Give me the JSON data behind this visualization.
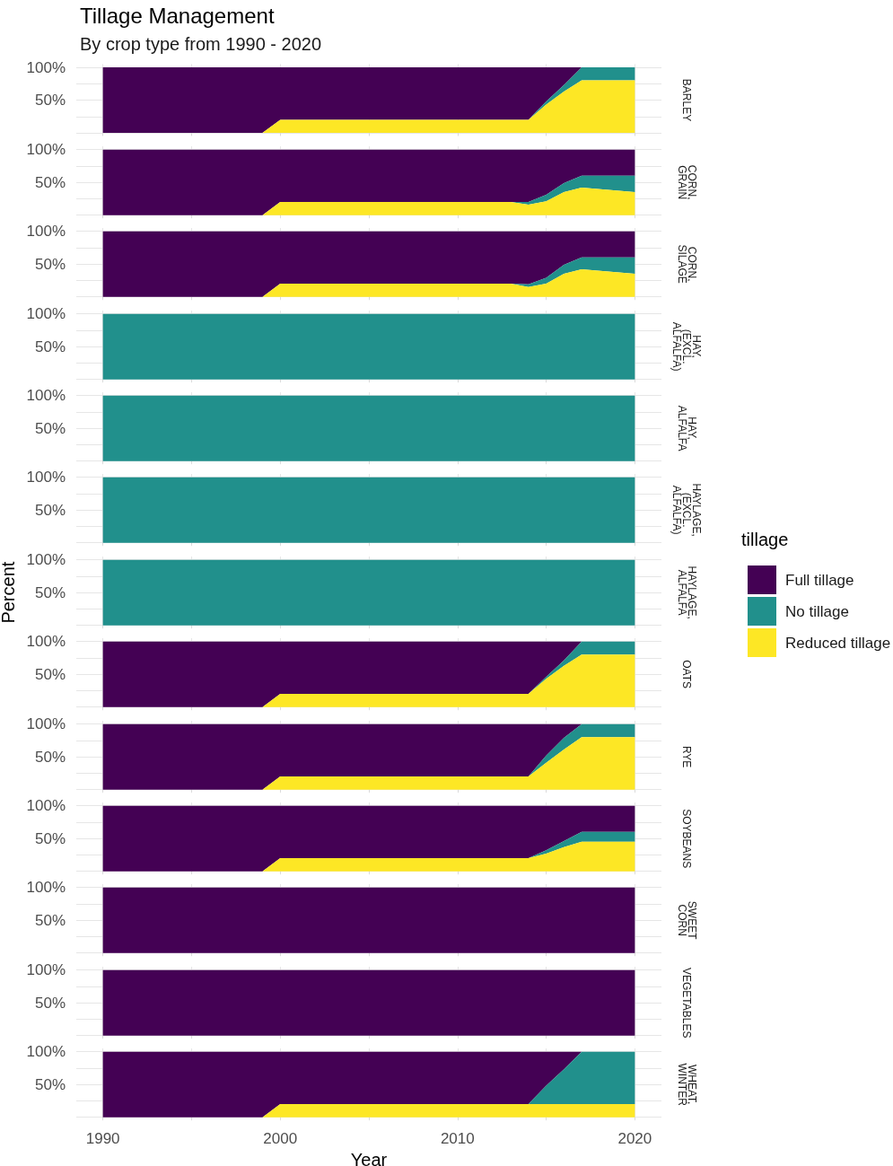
{
  "chart_data": [
    {
      "type": "area",
      "stacked": true,
      "title": "Tillage Management",
      "subtitle": "By crop type from 1990 - 2020",
      "annotations": [
        "BARLEY"
      ],
      "x": [
        1990,
        1999,
        2000,
        2013,
        2014,
        2015,
        2016,
        2017,
        2020
      ],
      "series": [
        {
          "color": "#fde725",
          "values": [
            0,
            0,
            20,
            20,
            20,
            43,
            63,
            80,
            80
          ]
        },
        {
          "color": "#21908c",
          "values": [
            0,
            0,
            0,
            0,
            0,
            5,
            10,
            20,
            20
          ]
        },
        {
          "color": "#440154",
          "values": [
            100,
            100,
            80,
            80,
            80,
            52,
            27,
            0,
            null
          ]
        }
      ],
      "xlim": [
        1988.5,
        2021.5
      ],
      "xticks": [
        1990,
        {
          "value": 1995,
          "label": null
        },
        2000,
        {
          "value": 2005,
          "label": null
        },
        2010,
        {
          "value": 2015,
          "label": null
        },
        2020
      ],
      "ylim": [
        -5,
        105
      ],
      "yticks": [
        {
          "value": 0,
          "label": null
        },
        {
          "value": 25,
          "label": null
        },
        {
          "value": 50,
          "label": "50%"
        },
        {
          "value": 75,
          "label": null
        },
        {
          "value": 100,
          "label": "100%"
        }
      ],
      "grid": true,
      "tick_labels": "y"
    },
    {
      "type": "area",
      "stacked": true,
      "annotations": [
        "CORN, GRAIN"
      ],
      "x": [
        1990,
        1999,
        2000,
        2013,
        2014,
        2015,
        2016,
        2017,
        2020
      ],
      "series": [
        {
          "color": "#fde725",
          "values": [
            0,
            0,
            20,
            20,
            16,
            21,
            35,
            42,
            35
          ]
        },
        {
          "color": "#21908c",
          "values": [
            0,
            0,
            0,
            0,
            4,
            10,
            14,
            18,
            25
          ]
        },
        {
          "color": "#440154",
          "values": [
            100,
            100,
            80,
            80,
            80,
            69,
            51,
            40,
            40
          ]
        }
      ],
      "xlim": [
        1988.5,
        2021.5
      ],
      "xticks": [
        1990,
        {
          "value": 1995,
          "label": null
        },
        2000,
        {
          "value": 2005,
          "label": null
        },
        2010,
        {
          "value": 2015,
          "label": null
        },
        2020
      ],
      "ylim": [
        -5,
        105
      ],
      "yticks": [
        {
          "value": 0,
          "label": null
        },
        {
          "value": 25,
          "label": null
        },
        {
          "value": 50,
          "label": "50%"
        },
        {
          "value": 75,
          "label": null
        },
        {
          "value": 100,
          "label": "100%"
        }
      ],
      "grid": true,
      "tick_labels": "y"
    },
    {
      "type": "area",
      "stacked": true,
      "annotations": [
        "CORN, SILAGE"
      ],
      "x": [
        1990,
        1999,
        2000,
        2013,
        2014,
        2015,
        2016,
        2017,
        2020
      ],
      "series": [
        {
          "color": "#fde725",
          "values": [
            0,
            0,
            20,
            20,
            15,
            20,
            35,
            42,
            35
          ]
        },
        {
          "color": "#21908c",
          "values": [
            0,
            0,
            0,
            0,
            4,
            9,
            14,
            18,
            25
          ]
        },
        {
          "color": "#440154",
          "values": [
            100,
            100,
            80,
            80,
            81,
            71,
            51,
            40,
            40
          ]
        }
      ],
      "xlim": [
        1988.5,
        2021.5
      ],
      "xticks": [
        1990,
        {
          "value": 1995,
          "label": null
        },
        2000,
        {
          "value": 2005,
          "label": null
        },
        2010,
        {
          "value": 2015,
          "label": null
        },
        2020
      ],
      "ylim": [
        -5,
        105
      ],
      "yticks": [
        {
          "value": 0,
          "label": null
        },
        {
          "value": 25,
          "label": null
        },
        {
          "value": 50,
          "label": "50%"
        },
        {
          "value": 75,
          "label": null
        },
        {
          "value": 100,
          "label": "100%"
        }
      ],
      "grid": true,
      "tick_labels": "y"
    },
    {
      "type": "area",
      "stacked": true,
      "annotations": [
        "HAY, (EXCL. ALFALFA)"
      ],
      "x": [
        1990,
        2020
      ],
      "series": [
        {
          "color": "#21908c",
          "values": [
            100,
            100
          ]
        }
      ],
      "xlim": [
        1988.5,
        2021.5
      ],
      "xticks": [
        1990,
        {
          "value": 1995,
          "label": null
        },
        2000,
        {
          "value": 2005,
          "label": null
        },
        2010,
        {
          "value": 2015,
          "label": null
        },
        2020
      ],
      "ylim": [
        -5,
        105
      ],
      "yticks": [
        {
          "value": 0,
          "label": null
        },
        {
          "value": 25,
          "label": null
        },
        {
          "value": 50,
          "label": "50%"
        },
        {
          "value": 75,
          "label": null
        },
        {
          "value": 100,
          "label": "100%"
        }
      ],
      "grid": true,
      "tick_labels": "y"
    },
    {
      "type": "area",
      "stacked": true,
      "annotations": [
        "HAY, ALFALFA"
      ],
      "x": [
        1990,
        2020
      ],
      "series": [
        {
          "color": "#21908c",
          "values": [
            100,
            100
          ]
        }
      ],
      "xlim": [
        1988.5,
        2021.5
      ],
      "xticks": [
        1990,
        {
          "value": 1995,
          "label": null
        },
        2000,
        {
          "value": 2005,
          "label": null
        },
        2010,
        {
          "value": 2015,
          "label": null
        },
        2020
      ],
      "ylim": [
        -5,
        105
      ],
      "yticks": [
        {
          "value": 0,
          "label": null
        },
        {
          "value": 25,
          "label": null
        },
        {
          "value": 50,
          "label": "50%"
        },
        {
          "value": 75,
          "label": null
        },
        {
          "value": 100,
          "label": "100%"
        }
      ],
      "grid": true,
      "tick_labels": "y"
    },
    {
      "type": "area",
      "stacked": true,
      "annotations": [
        "HAYLAGE, (EXCL. ALFALFA)"
      ],
      "x": [
        1990,
        2020
      ],
      "series": [
        {
          "color": "#21908c",
          "values": [
            100,
            100
          ]
        }
      ],
      "xlim": [
        1988.5,
        2021.5
      ],
      "xticks": [
        1990,
        {
          "value": 1995,
          "label": null
        },
        2000,
        {
          "value": 2005,
          "label": null
        },
        2010,
        {
          "value": 2015,
          "label": null
        },
        2020
      ],
      "ylim": [
        -5,
        105
      ],
      "yticks": [
        {
          "value": 0,
          "label": null
        },
        {
          "value": 25,
          "label": null
        },
        {
          "value": 50,
          "label": "50%"
        },
        {
          "value": 75,
          "label": null
        },
        {
          "value": 100,
          "label": "100%"
        }
      ],
      "grid": true,
      "tick_labels": "y"
    },
    {
      "type": "area",
      "stacked": true,
      "ylabel": "Percent",
      "annotations": [
        "HAYLAGE, ALFALFA"
      ],
      "x": [
        1990,
        2020
      ],
      "series": [
        {
          "color": "#21908c",
          "values": [
            100,
            100
          ]
        }
      ],
      "xlim": [
        1988.5,
        2021.5
      ],
      "xticks": [
        1990,
        {
          "value": 1995,
          "label": null
        },
        2000,
        {
          "value": 2005,
          "label": null
        },
        2010,
        {
          "value": 2015,
          "label": null
        },
        2020
      ],
      "ylim": [
        -5,
        105
      ],
      "yticks": [
        {
          "value": 0,
          "label": null
        },
        {
          "value": 25,
          "label": null
        },
        {
          "value": 50,
          "label": "50%"
        },
        {
          "value": 75,
          "label": null
        },
        {
          "value": 100,
          "label": "100%"
        }
      ],
      "grid": true,
      "tick_labels": "y"
    },
    {
      "type": "area",
      "stacked": true,
      "legend": "right",
      "legend_title": "tillage",
      "annotations": [
        "OATS"
      ],
      "x": [
        1990,
        1999,
        2000,
        2013,
        2014,
        2015,
        2016,
        2017,
        2020
      ],
      "series": [
        {
          "name": "Reduced tillage",
          "color": "#fde725",
          "values": [
            0,
            0,
            20,
            20,
            20,
            43,
            63,
            80,
            80
          ]
        },
        {
          "name": "No tillage",
          "color": "#21908c",
          "values": [
            0,
            0,
            0,
            0,
            0,
            3,
            8,
            20,
            20
          ]
        },
        {
          "name": "Full tillage",
          "color": "#440154",
          "values": [
            100,
            100,
            80,
            80,
            80,
            54,
            29,
            0,
            null
          ]
        }
      ],
      "xlim": [
        1988.5,
        2021.5
      ],
      "xticks": [
        1990,
        {
          "value": 1995,
          "label": null
        },
        2000,
        {
          "value": 2005,
          "label": null
        },
        2010,
        {
          "value": 2015,
          "label": null
        },
        2020
      ],
      "ylim": [
        -5,
        105
      ],
      "yticks": [
        {
          "value": 0,
          "label": null
        },
        {
          "value": 25,
          "label": null
        },
        {
          "value": 50,
          "label": "50%"
        },
        {
          "value": 75,
          "label": null
        },
        {
          "value": 100,
          "label": "100%"
        }
      ],
      "grid": true,
      "tick_labels": "y"
    },
    {
      "type": "area",
      "stacked": true,
      "annotations": [
        "RYE"
      ],
      "x": [
        1990,
        1999,
        2000,
        2013,
        2014,
        2015,
        2016,
        2017,
        2020
      ],
      "series": [
        {
          "color": "#fde725",
          "values": [
            0,
            0,
            20,
            20,
            20,
            41,
            61,
            80,
            80
          ]
        },
        {
          "color": "#21908c",
          "values": [
            0,
            0,
            0,
            0,
            0,
            11,
            18,
            20,
            20
          ]
        },
        {
          "color": "#440154",
          "values": [
            100,
            100,
            80,
            80,
            80,
            48,
            21,
            0,
            null
          ]
        }
      ],
      "xlim": [
        1988.5,
        2021.5
      ],
      "xticks": [
        1990,
        {
          "value": 1995,
          "label": null
        },
        2000,
        {
          "value": 2005,
          "label": null
        },
        2010,
        {
          "value": 2015,
          "label": null
        },
        2020
      ],
      "ylim": [
        -5,
        105
      ],
      "yticks": [
        {
          "value": 0,
          "label": null
        },
        {
          "value": 25,
          "label": null
        },
        {
          "value": 50,
          "label": "50%"
        },
        {
          "value": 75,
          "label": null
        },
        {
          "value": 100,
          "label": "100%"
        }
      ],
      "grid": true,
      "tick_labels": "y"
    },
    {
      "type": "area",
      "stacked": true,
      "annotations": [
        "SOYBEANS"
      ],
      "x": [
        1990,
        1999,
        2000,
        2013,
        2014,
        2015,
        2016,
        2017,
        2020
      ],
      "series": [
        {
          "color": "#fde725",
          "values": [
            0,
            0,
            20,
            20,
            20,
            27,
            37,
            45,
            45
          ]
        },
        {
          "color": "#21908c",
          "values": [
            0,
            0,
            0,
            0,
            0,
            5,
            9,
            15,
            15
          ]
        },
        {
          "color": "#440154",
          "values": [
            100,
            100,
            80,
            80,
            80,
            68,
            54,
            40,
            40
          ]
        }
      ],
      "xlim": [
        1988.5,
        2021.5
      ],
      "xticks": [
        1990,
        {
          "value": 1995,
          "label": null
        },
        2000,
        {
          "value": 2005,
          "label": null
        },
        2010,
        {
          "value": 2015,
          "label": null
        },
        2020
      ],
      "ylim": [
        -5,
        105
      ],
      "yticks": [
        {
          "value": 0,
          "label": null
        },
        {
          "value": 25,
          "label": null
        },
        {
          "value": 50,
          "label": "50%"
        },
        {
          "value": 75,
          "label": null
        },
        {
          "value": 100,
          "label": "100%"
        }
      ],
      "grid": true,
      "tick_labels": "y"
    },
    {
      "type": "area",
      "stacked": true,
      "annotations": [
        "SWEET CORN"
      ],
      "x": [
        1990,
        2020
      ],
      "series": [
        {
          "color": "#440154",
          "values": [
            100,
            100
          ]
        }
      ],
      "xlim": [
        1988.5,
        2021.5
      ],
      "xticks": [
        1990,
        {
          "value": 1995,
          "label": null
        },
        2000,
        {
          "value": 2005,
          "label": null
        },
        2010,
        {
          "value": 2015,
          "label": null
        },
        2020
      ],
      "ylim": [
        -5,
        105
      ],
      "yticks": [
        {
          "value": 0,
          "label": null
        },
        {
          "value": 25,
          "label": null
        },
        {
          "value": 50,
          "label": "50%"
        },
        {
          "value": 75,
          "label": null
        },
        {
          "value": 100,
          "label": "100%"
        }
      ],
      "grid": true,
      "tick_labels": "y"
    },
    {
      "type": "area",
      "stacked": true,
      "annotations": [
        "VEGETABLES"
      ],
      "x": [
        1990,
        2020
      ],
      "series": [
        {
          "color": "#440154",
          "values": [
            100,
            100
          ]
        }
      ],
      "xlim": [
        1988.5,
        2021.5
      ],
      "xticks": [
        1990,
        {
          "value": 1995,
          "label": null
        },
        2000,
        {
          "value": 2005,
          "label": null
        },
        2010,
        {
          "value": 2015,
          "label": null
        },
        2020
      ],
      "ylim": [
        -5,
        105
      ],
      "yticks": [
        {
          "value": 0,
          "label": null
        },
        {
          "value": 25,
          "label": null
        },
        {
          "value": 50,
          "label": "50%"
        },
        {
          "value": 75,
          "label": null
        },
        {
          "value": 100,
          "label": "100%"
        }
      ],
      "grid": true,
      "tick_labels": "y"
    },
    {
      "type": "area",
      "stacked": true,
      "xlabel": "Year",
      "annotations": [
        "WHEAT, WINTER"
      ],
      "x": [
        1990,
        1999,
        2000,
        2013,
        2014,
        2015,
        2016,
        2017,
        2020
      ],
      "series": [
        {
          "color": "#fde725",
          "values": [
            0,
            0,
            20,
            20,
            20,
            20,
            20,
            20,
            20
          ]
        },
        {
          "color": "#21908c",
          "values": [
            0,
            0,
            0,
            0,
            0,
            28,
            53,
            80,
            80
          ]
        },
        {
          "color": "#440154",
          "values": [
            100,
            100,
            80,
            80,
            80,
            52,
            27,
            0,
            null
          ]
        }
      ],
      "xlim": [
        1988.5,
        2021.5
      ],
      "xticks": [
        1990,
        {
          "value": 1995,
          "label": null
        },
        2000,
        {
          "value": 2005,
          "label": null
        },
        2010,
        {
          "value": 2015,
          "label": null
        },
        2020
      ],
      "ylim": [
        -5,
        105
      ],
      "yticks": [
        {
          "value": 0,
          "label": null
        },
        {
          "value": 25,
          "label": null
        },
        {
          "value": 50,
          "label": "50%"
        },
        {
          "value": 75,
          "label": null
        },
        {
          "value": 100,
          "label": "100%"
        }
      ],
      "grid": true
    }
  ]
}
